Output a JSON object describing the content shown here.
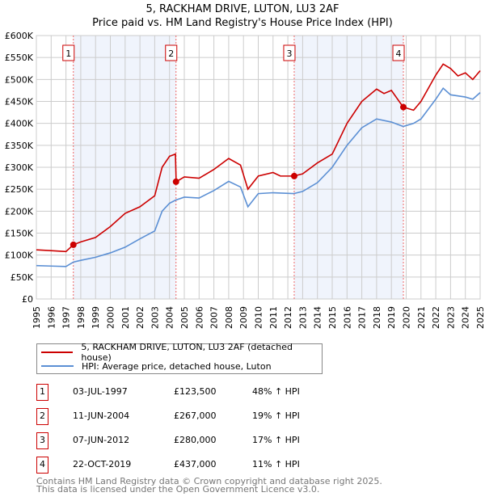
{
  "chart_data": {
    "type": "line",
    "title": "5, RACKHAM DRIVE, LUTON, LU3 2AF",
    "subtitle": "Price paid vs. HM Land Registry's House Price Index (HPI)",
    "xlim": [
      1995,
      2025
    ],
    "ylim": [
      0,
      600000
    ],
    "y_ticks": [
      "£0",
      "£50K",
      "£100K",
      "£150K",
      "£200K",
      "£250K",
      "£300K",
      "£350K",
      "£400K",
      "£450K",
      "£500K",
      "£550K",
      "£600K"
    ],
    "x_ticks": [
      "1995",
      "1996",
      "1997",
      "1998",
      "1999",
      "2000",
      "2001",
      "2002",
      "2003",
      "2004",
      "2005",
      "2006",
      "2007",
      "2008",
      "2009",
      "2010",
      "2011",
      "2012",
      "2013",
      "2014",
      "2015",
      "2016",
      "2017",
      "2018",
      "2019",
      "2020",
      "2021",
      "2022",
      "2023",
      "2024",
      "2025"
    ],
    "grid": true,
    "series": [
      {
        "name": "5, RACKHAM DRIVE, LUTON, LU3 2AF (detached house)",
        "color": "#cc0000",
        "x": [
          1995,
          1996,
          1997,
          1997.5,
          1998,
          1999,
          2000,
          2001,
          2002,
          2003,
          2003.5,
          2004,
          2004.4,
          2004.45,
          2005,
          2006,
          2007,
          2008,
          2008.8,
          2009.3,
          2010,
          2011,
          2011.5,
          2012.4,
          2013,
          2014,
          2015,
          2016,
          2017,
          2018,
          2018.5,
          2019,
          2019.8,
          2020.5,
          2021,
          2022,
          2022.5,
          2023,
          2023.5,
          2024,
          2024.5,
          2025
        ],
        "y": [
          112000,
          110000,
          108000,
          123500,
          130000,
          140000,
          165000,
          195000,
          210000,
          235000,
          300000,
          325000,
          330000,
          267000,
          278000,
          275000,
          295000,
          320000,
          305000,
          250000,
          280000,
          288000,
          280000,
          280000,
          285000,
          310000,
          330000,
          400000,
          450000,
          478000,
          468000,
          475000,
          437000,
          430000,
          450000,
          510000,
          535000,
          525000,
          508000,
          515000,
          500000,
          520000
        ]
      },
      {
        "name": "HPI: Average price, detached house, Luton",
        "color": "#5b8fd4",
        "x": [
          1995,
          1996,
          1997,
          1997.5,
          1998,
          1999,
          2000,
          2001,
          2002,
          2003,
          2003.5,
          2004,
          2004.4,
          2005,
          2006,
          2007,
          2008,
          2008.8,
          2009.3,
          2010,
          2011,
          2012.4,
          2013,
          2014,
          2015,
          2016,
          2017,
          2018,
          2019,
          2019.8,
          2020.5,
          2021,
          2022,
          2022.5,
          2023,
          2024,
          2024.5,
          2025
        ],
        "y": [
          76000,
          75000,
          74000,
          84000,
          88000,
          95000,
          105000,
          118000,
          137000,
          155000,
          200000,
          218000,
          225000,
          232000,
          230000,
          247000,
          268000,
          255000,
          210000,
          240000,
          242000,
          240000,
          245000,
          265000,
          300000,
          350000,
          390000,
          410000,
          403000,
          393000,
          400000,
          410000,
          455000,
          480000,
          465000,
          460000,
          455000,
          470000
        ]
      }
    ],
    "sales": [
      {
        "label": "1",
        "x": 1997.5,
        "y": 123500
      },
      {
        "label": "2",
        "x": 2004.44,
        "y": 267000
      },
      {
        "label": "3",
        "x": 2012.43,
        "y": 280000
      },
      {
        "label": "4",
        "x": 2019.81,
        "y": 437000
      }
    ],
    "shaded_ranges": [
      [
        1997.5,
        2004.44
      ],
      [
        2012.43,
        2019.81
      ]
    ]
  },
  "legend": [
    {
      "label": "5, RACKHAM DRIVE, LUTON, LU3 2AF (detached house)",
      "color": "#cc0000"
    },
    {
      "label": "HPI: Average price, detached house, Luton",
      "color": "#5b8fd4"
    }
  ],
  "table": [
    {
      "num": "1",
      "date": "03-JUL-1997",
      "price": "£123,500",
      "hpi": "48% ↑ HPI"
    },
    {
      "num": "2",
      "date": "11-JUN-2004",
      "price": "£267,000",
      "hpi": "19% ↑ HPI"
    },
    {
      "num": "3",
      "date": "07-JUN-2012",
      "price": "£280,000",
      "hpi": "17% ↑ HPI"
    },
    {
      "num": "4",
      "date": "22-OCT-2019",
      "price": "£437,000",
      "hpi": "11% ↑ HPI"
    }
  ],
  "footer": {
    "line1": "Contains HM Land Registry data © Crown copyright and database right 2025.",
    "line2": "This data is licensed under the Open Government Licence v3.0."
  }
}
